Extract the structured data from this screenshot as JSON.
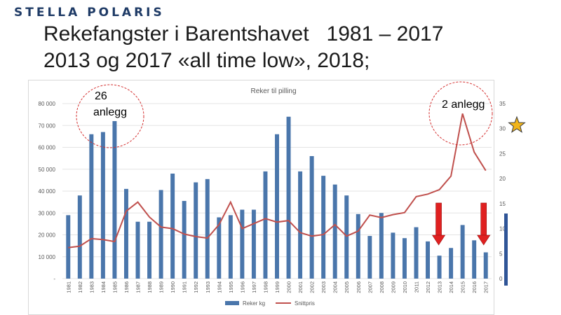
{
  "header": {
    "logo_text": "STELLA POLARIS",
    "title_line1": "Rekefangster i Barentshavet   1981 – 2017",
    "title_line2": "2013 og 2017 «all time low», 2018;"
  },
  "annotations": {
    "left_circle_number": "26",
    "left_circle_word": "anlegg",
    "right_circle_label": "2 anlegg"
  },
  "colors": {
    "bars": "#4a76ab",
    "line": "#c0504d",
    "arrows": "#e02020",
    "circles": "#d43030",
    "star": "#f2b51a"
  },
  "chart_data": {
    "type": "bar+line",
    "title": "Reker til pilling",
    "categories": [
      "1981",
      "1982",
      "1983",
      "1984",
      "1985",
      "1986",
      "1987",
      "1988",
      "1989",
      "1990",
      "1991",
      "1992",
      "1993",
      "1994",
      "1995",
      "1996",
      "1997",
      "1998",
      "1999",
      "2000",
      "2001",
      "2002",
      "2003",
      "2004",
      "2005",
      "2006",
      "2007",
      "2008",
      "2009",
      "2010",
      "2011",
      "2012",
      "2013",
      "2014",
      "2015",
      "2016",
      "2017"
    ],
    "series": [
      {
        "name": "Reker kg",
        "type": "bar",
        "axis": "left",
        "values": [
          29000,
          38000,
          66000,
          67000,
          72000,
          41000,
          26000,
          26000,
          40500,
          48000,
          35500,
          44000,
          45500,
          28000,
          29000,
          31500,
          31500,
          49000,
          66000,
          74000,
          49000,
          56000,
          47000,
          43000,
          38000,
          29500,
          19500,
          30000,
          21000,
          18500,
          23500,
          17000,
          10500,
          14000,
          24500,
          17500,
          12000
        ]
      },
      {
        "name": "Snittpris",
        "type": "line",
        "axis": "right",
        "values": [
          6.2,
          6.5,
          8.0,
          7.8,
          7.4,
          13.5,
          15.3,
          12.3,
          10.3,
          10.0,
          8.9,
          8.4,
          8.1,
          10.8,
          15.3,
          10.0,
          11.0,
          12.0,
          11.3,
          11.6,
          9.2,
          8.5,
          8.8,
          10.8,
          8.5,
          9.5,
          12.7,
          12.2,
          12.8,
          13.2,
          16.4,
          16.9,
          17.8,
          20.5,
          33.0,
          25.3,
          21.6
        ]
      }
    ],
    "ylim_left": [
      0,
      80000
    ],
    "yticks_left": [
      "-",
      "10 000",
      "20 000",
      "30 000",
      "40 000",
      "50 000",
      "60 000",
      "70 000",
      "80 000"
    ],
    "ylim_right": [
      0,
      35
    ],
    "yticks_right": [
      "0",
      "5",
      "10",
      "15",
      "20",
      "25",
      "30",
      "35"
    ],
    "legend": [
      "Reker kg",
      "Snittpris"
    ],
    "legend_position": "bottom",
    "grid": true
  }
}
